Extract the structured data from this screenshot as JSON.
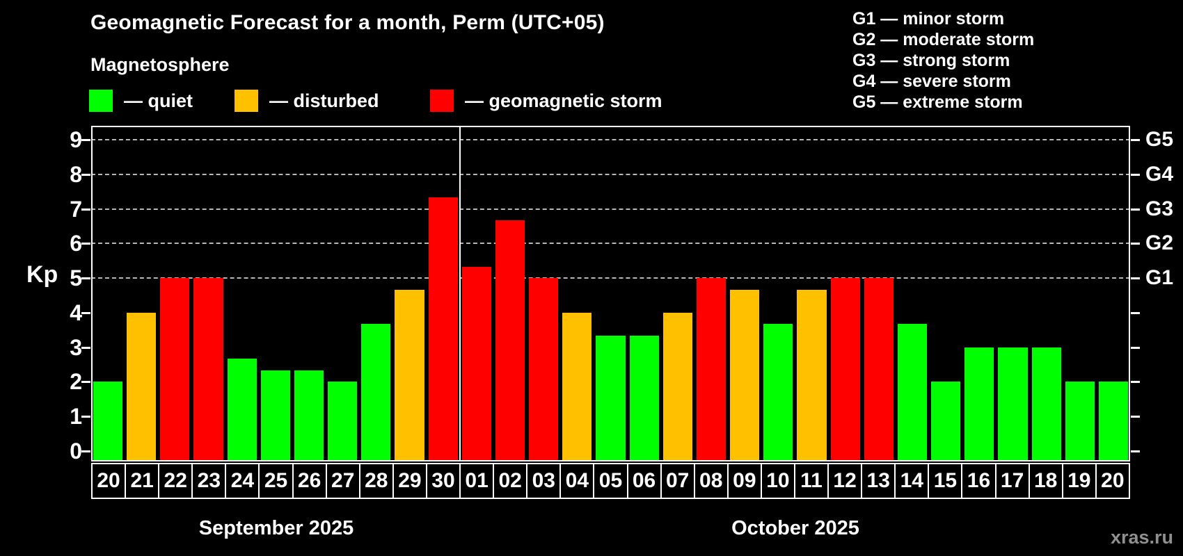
{
  "header": {
    "title": "Geomagnetic Forecast for a month, Perm (UTC+05)",
    "subtitle": "Magnetosphere"
  },
  "legend": {
    "items": [
      {
        "status": "quiet",
        "label": "— quiet",
        "color": "#00ff00"
      },
      {
        "status": "disturbed",
        "label": "— disturbed",
        "color": "#ffc000"
      },
      {
        "status": "storm",
        "label": "— geomagnetic storm",
        "color": "#ff0000"
      }
    ]
  },
  "storm_scale_legend": {
    "items": [
      "G1 — minor storm",
      "G2 — moderate storm",
      "G3 — strong storm",
      "G4 — severe storm",
      "G5 — extreme storm"
    ]
  },
  "footer": {
    "watermark": "xras.ru"
  },
  "chart_data": {
    "type": "bar",
    "title": "Geomagnetic Forecast for a month, Perm (UTC+05)",
    "ylabel": "Kp",
    "xlabel": "",
    "ylim": [
      -0.3,
      9.4
    ],
    "y_ticks": [
      0,
      1,
      2,
      3,
      4,
      5,
      6,
      7,
      8,
      9
    ],
    "gridlines_at": [
      5,
      6,
      7,
      8,
      9
    ],
    "grid_color": "#b8b8b8",
    "right_axis": [
      {
        "value": 5,
        "label": "G1"
      },
      {
        "value": 6,
        "label": "G2"
      },
      {
        "value": 7,
        "label": "G3"
      },
      {
        "value": 8,
        "label": "G4"
      },
      {
        "value": 9,
        "label": "G5"
      }
    ],
    "status_colors": {
      "quiet": "#00ff00",
      "disturbed": "#ffc000",
      "storm": "#ff0000"
    },
    "x_sections": [
      {
        "label": "September 2025",
        "bar_count": 11
      },
      {
        "label": "October 2025",
        "bar_count": 20
      }
    ],
    "month_divider_after_index": 10,
    "bars": [
      {
        "date": "20",
        "value": 2.0,
        "status": "quiet"
      },
      {
        "date": "21",
        "value": 4.0,
        "status": "disturbed"
      },
      {
        "date": "22",
        "value": 5.0,
        "status": "storm"
      },
      {
        "date": "23",
        "value": 5.0,
        "status": "storm"
      },
      {
        "date": "24",
        "value": 2.67,
        "status": "quiet"
      },
      {
        "date": "25",
        "value": 2.33,
        "status": "quiet"
      },
      {
        "date": "26",
        "value": 2.33,
        "status": "quiet"
      },
      {
        "date": "27",
        "value": 2.0,
        "status": "quiet"
      },
      {
        "date": "28",
        "value": 3.67,
        "status": "quiet"
      },
      {
        "date": "29",
        "value": 4.67,
        "status": "disturbed"
      },
      {
        "date": "30",
        "value": 7.33,
        "status": "storm"
      },
      {
        "date": "01",
        "value": 5.33,
        "status": "storm"
      },
      {
        "date": "02",
        "value": 6.67,
        "status": "storm"
      },
      {
        "date": "03",
        "value": 5.0,
        "status": "storm"
      },
      {
        "date": "04",
        "value": 4.0,
        "status": "disturbed"
      },
      {
        "date": "05",
        "value": 3.33,
        "status": "quiet"
      },
      {
        "date": "06",
        "value": 3.33,
        "status": "quiet"
      },
      {
        "date": "07",
        "value": 4.0,
        "status": "disturbed"
      },
      {
        "date": "08",
        "value": 5.0,
        "status": "storm"
      },
      {
        "date": "09",
        "value": 4.67,
        "status": "disturbed"
      },
      {
        "date": "10",
        "value": 3.67,
        "status": "quiet"
      },
      {
        "date": "11",
        "value": 4.67,
        "status": "disturbed"
      },
      {
        "date": "12",
        "value": 5.0,
        "status": "storm"
      },
      {
        "date": "13",
        "value": 5.0,
        "status": "storm"
      },
      {
        "date": "14",
        "value": 3.67,
        "status": "quiet"
      },
      {
        "date": "15",
        "value": 2.0,
        "status": "quiet"
      },
      {
        "date": "16",
        "value": 3.0,
        "status": "quiet"
      },
      {
        "date": "17",
        "value": 3.0,
        "status": "quiet"
      },
      {
        "date": "18",
        "value": 3.0,
        "status": "quiet"
      },
      {
        "date": "19",
        "value": 2.0,
        "status": "quiet"
      },
      {
        "date": "20",
        "value": 2.0,
        "status": "quiet"
      }
    ]
  }
}
